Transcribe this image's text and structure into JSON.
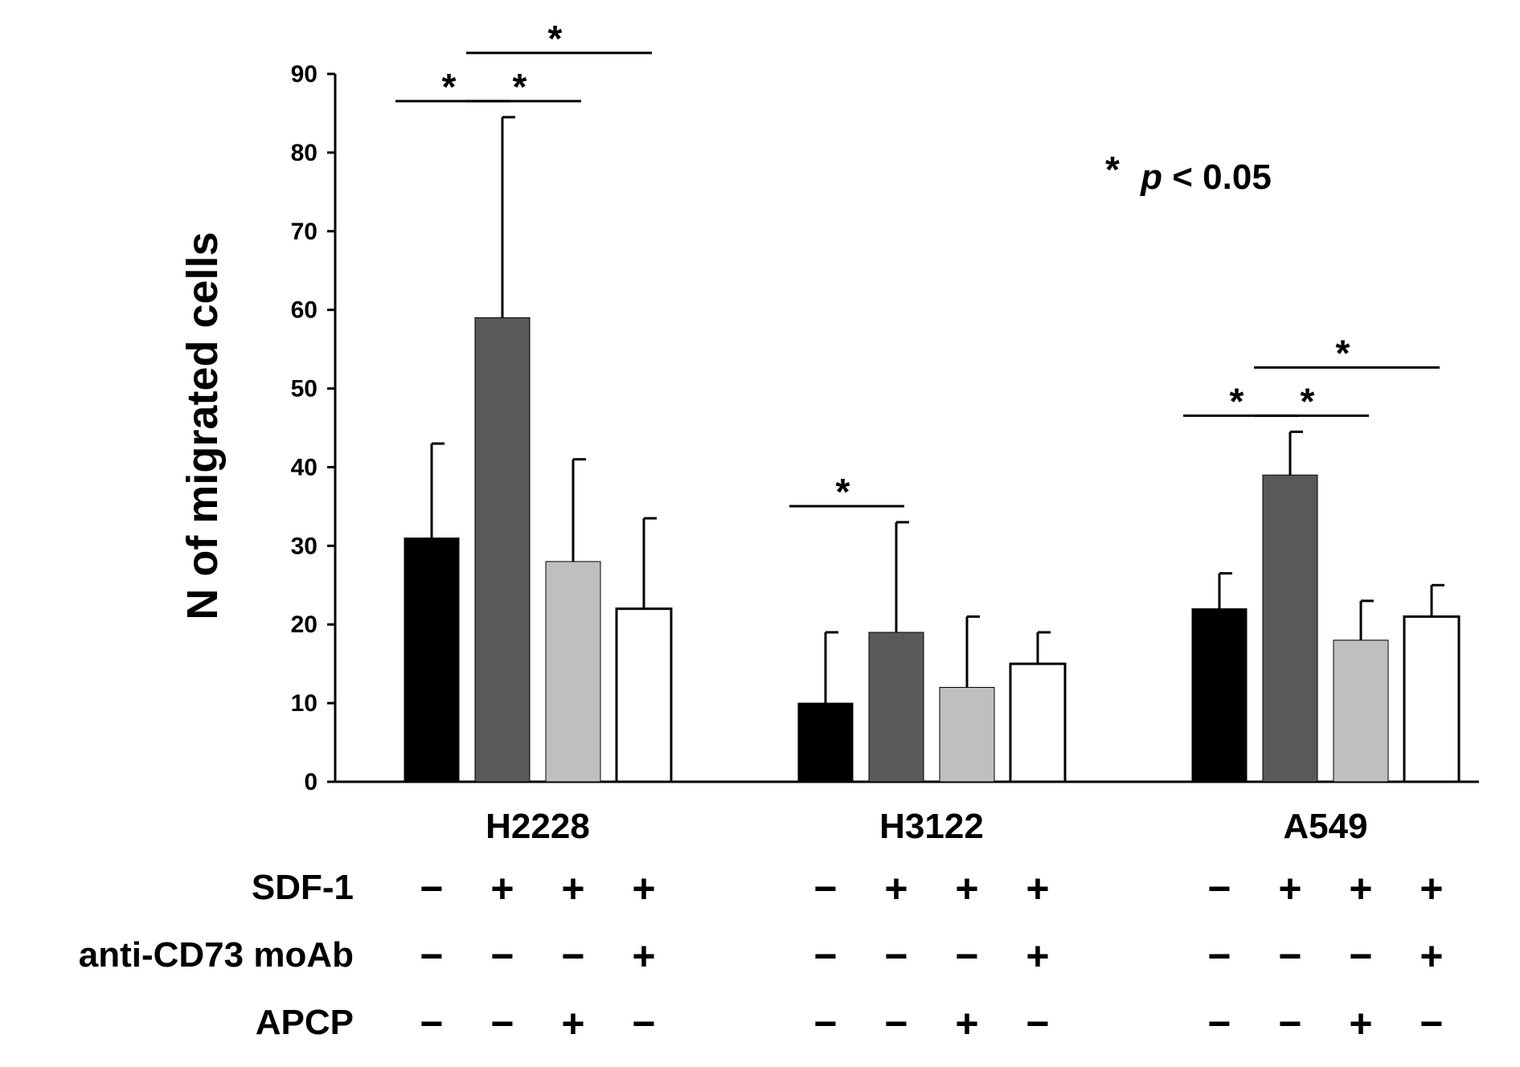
{
  "chart_data": {
    "type": "bar",
    "title": "",
    "xlabel": "",
    "ylabel": "N of migrated cells",
    "ylim": [
      0,
      90
    ],
    "yticks": [
      "0",
      "10",
      "20",
      "30",
      "40",
      "50",
      "60",
      "70",
      "80",
      "90"
    ],
    "grid": false,
    "categories": [
      "H2228",
      "H3122",
      "A549"
    ],
    "series": [
      {
        "name": "SDF-1 − / anti-CD73 moAb − / APCP −",
        "color": "#000000",
        "values": [
          31,
          10,
          22
        ],
        "errors": [
          12,
          9,
          4.5
        ]
      },
      {
        "name": "SDF-1 + / anti-CD73 moAb − / APCP −",
        "color": "#595959",
        "values": [
          59,
          19,
          39
        ],
        "errors": [
          25.5,
          14,
          5.5
        ]
      },
      {
        "name": "SDF-1 + / anti-CD73 moAb − / APCP +",
        "color": "#bfbfbf",
        "values": [
          28,
          12,
          18
        ],
        "errors": [
          13,
          9,
          5
        ]
      },
      {
        "name": "SDF-1 + / anti-CD73 moAb + / APCP −",
        "color": "#ffffff",
        "values": [
          22,
          15,
          21
        ],
        "errors": [
          11.5,
          4,
          4
        ]
      }
    ],
    "significance": [
      {
        "category": 0,
        "from": 0,
        "to": 1,
        "label": "*"
      },
      {
        "category": 0,
        "from": 1,
        "to": 2,
        "label": "*"
      },
      {
        "category": 0,
        "from": 1,
        "to": 3,
        "label": "*"
      },
      {
        "category": 1,
        "from": 0,
        "to": 1,
        "label": "*"
      },
      {
        "category": 2,
        "from": 0,
        "to": 1,
        "label": "*"
      },
      {
        "category": 2,
        "from": 1,
        "to": 2,
        "label": "*"
      },
      {
        "category": 2,
        "from": 1,
        "to": 3,
        "label": "*"
      }
    ],
    "annotation": {
      "star": "*",
      "p_italic": "p",
      "text": "< 0.05"
    },
    "conditions": [
      {
        "label": "SDF-1",
        "signs": [
          "−",
          "+",
          "+",
          "+",
          "−",
          "+",
          "+",
          "+",
          "−",
          "+",
          "+",
          "+"
        ]
      },
      {
        "label": "anti-CD73 moAb",
        "signs": [
          "−",
          "−",
          "−",
          "+",
          "−",
          "−",
          "−",
          "+",
          "−",
          "−",
          "−",
          "+"
        ]
      },
      {
        "label": "APCP",
        "signs": [
          "−",
          "−",
          "+",
          "−",
          "−",
          "−",
          "+",
          "−",
          "−",
          "−",
          "+",
          "−"
        ]
      }
    ]
  }
}
